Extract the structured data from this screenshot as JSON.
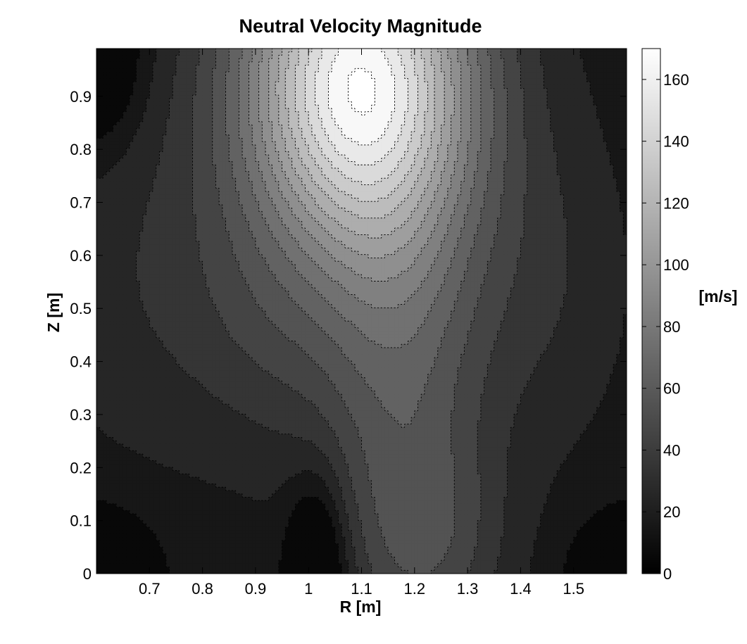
{
  "chart_data": {
    "type": "heatmap",
    "subtype": "filled-contour",
    "title": "Neutral Velocity Magnitude",
    "xlabel": "R [m]",
    "ylabel": "Z [m]",
    "colorbar_label": "[m/s]",
    "colormap": "gray",
    "xlim": [
      0.6,
      1.6
    ],
    "ylim": [
      0,
      0.99
    ],
    "clim": [
      0,
      170
    ],
    "x_ticks": [
      0.7,
      0.8,
      0.9,
      1.0,
      1.1,
      1.2,
      1.3,
      1.4,
      1.5
    ],
    "x_tick_labels": [
      "0.7",
      "0.8",
      "0.9",
      "1",
      "1.1",
      "1.2",
      "1.3",
      "1.4",
      "1.5"
    ],
    "y_ticks": [
      0,
      0.1,
      0.2,
      0.3,
      0.4,
      0.5,
      0.6,
      0.7,
      0.8,
      0.9
    ],
    "y_tick_labels": [
      "0",
      "0.1",
      "0.2",
      "0.3",
      "0.4",
      "0.5",
      "0.6",
      "0.7",
      "0.8",
      "0.9"
    ],
    "colorbar_ticks": [
      0,
      20,
      40,
      60,
      80,
      100,
      120,
      140,
      160
    ],
    "colorbar_tick_labels": [
      "0",
      "20",
      "40",
      "60",
      "80",
      "100",
      "120",
      "140",
      "160"
    ],
    "contour_step": 10,
    "contour_line_style": "dotted",
    "contour_line_color": "#000000",
    "features": [
      {
        "kind": "peak",
        "r": 1.09,
        "z": 0.9,
        "value": 165
      },
      {
        "kind": "minimum",
        "r": 1.02,
        "z": 0.0,
        "value": 3
      },
      {
        "kind": "minimum",
        "r": 0.62,
        "z": 0.97,
        "value": 4
      },
      {
        "kind": "minimum",
        "r": 0.62,
        "z": 0.0,
        "value": 4
      },
      {
        "kind": "minimum",
        "r": 1.6,
        "z": 0.0,
        "value": 4
      }
    ]
  }
}
